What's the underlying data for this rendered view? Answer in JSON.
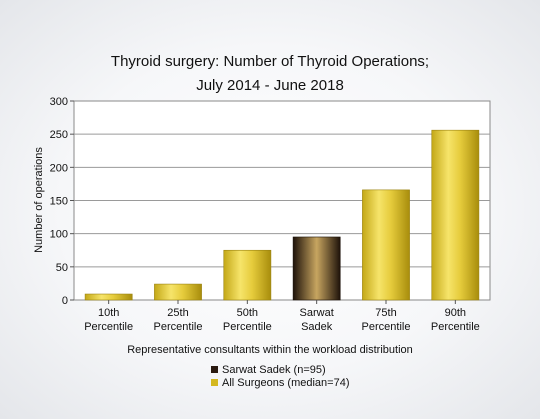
{
  "chart_data": {
    "type": "bar",
    "title": [
      "Thyroid surgery: Number of Thyroid Operations;",
      "July 2014 - June 2018"
    ],
    "xlabel": "Representative consultants within the workload distribution",
    "ylabel": "Number of operations",
    "ylim": [
      0,
      300
    ],
    "yticks": [
      0,
      50,
      100,
      150,
      200,
      250,
      300
    ],
    "grid": true,
    "categories": [
      [
        "10th",
        "Percentile"
      ],
      [
        "25th",
        "Percentile"
      ],
      [
        "50th",
        "Percentile"
      ],
      [
        "Sarwat",
        "Sadek"
      ],
      [
        "75th",
        "Percentile"
      ],
      [
        "90th",
        "Percentile"
      ]
    ],
    "values": [
      9,
      24,
      75,
      95,
      166,
      256
    ],
    "bar_series": [
      "all",
      "all",
      "all",
      "consultant",
      "all",
      "all"
    ],
    "legend": {
      "placement": "bottom-center",
      "items": [
        {
          "key": "consultant",
          "label": "Sarwat Sadek (n=95)",
          "color": "#2a1a10"
        },
        {
          "key": "all",
          "label": "All Surgeons (median=74)",
          "color": "#d4b820"
        }
      ]
    },
    "colors": {
      "all": "#d4b820",
      "consultant": "#2a1a10"
    }
  }
}
